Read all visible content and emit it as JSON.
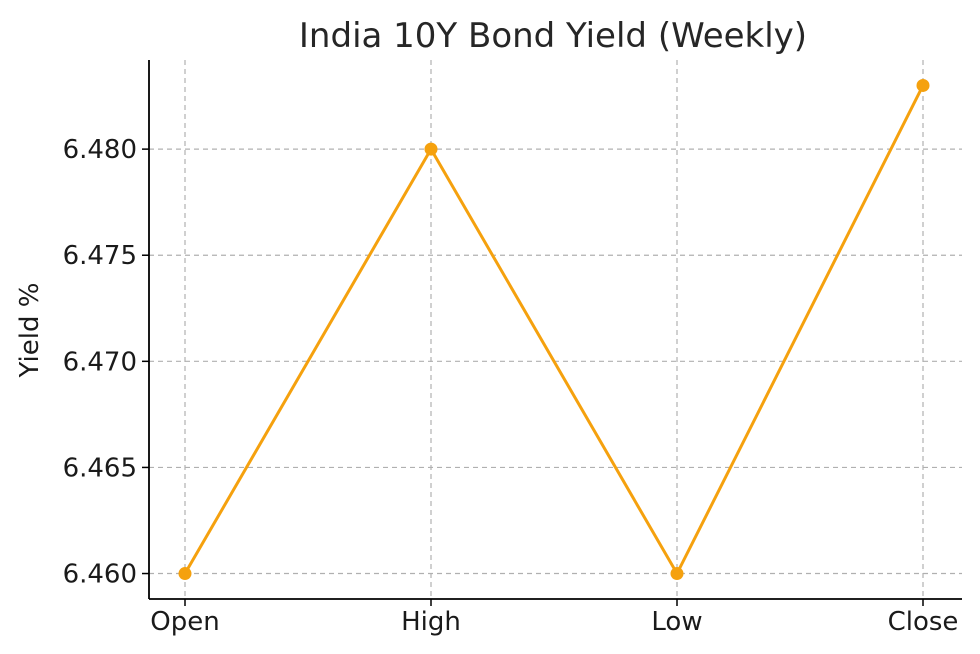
{
  "chart_data": {
    "type": "line",
    "title": "India 10Y Bond Yield (Weekly)",
    "xlabel": "",
    "ylabel": "Yield %",
    "categories": [
      "Open",
      "High",
      "Low",
      "Close"
    ],
    "series": [
      {
        "values": [
          6.46,
          6.48,
          6.46,
          6.483
        ],
        "color": "#f5a10e"
      }
    ],
    "yticks": [
      "6.460",
      "6.465",
      "6.470",
      "6.475",
      "6.480"
    ],
    "ylim": [
      6.4588,
      6.4842
    ],
    "grid": true,
    "legend": false
  }
}
